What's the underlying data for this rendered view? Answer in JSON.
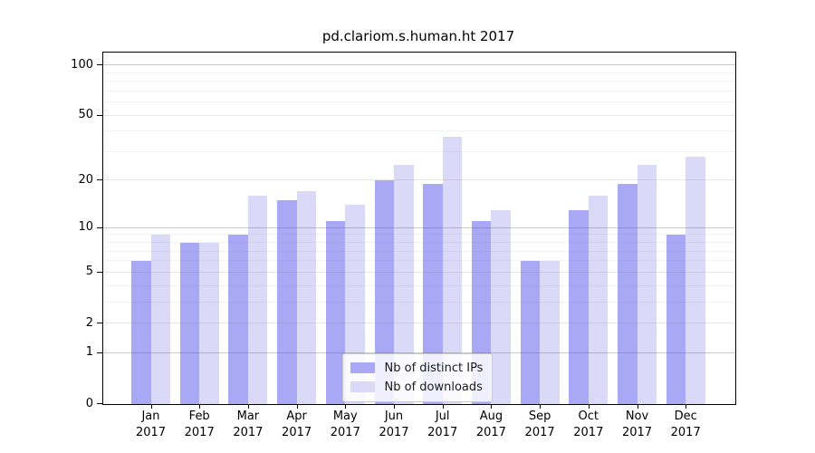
{
  "chart_data": {
    "type": "bar",
    "title": "pd.clariom.s.human.ht 2017",
    "x_categories_line1": [
      "Jan",
      "Feb",
      "Mar",
      "Apr",
      "May",
      "Jun",
      "Jul",
      "Aug",
      "Sep",
      "Oct",
      "Nov",
      "Dec"
    ],
    "x_categories_line2": "2017",
    "series": [
      {
        "name": "Nb of distinct IPs",
        "color": "#a8a8f5",
        "values": [
          6,
          8,
          9,
          15,
          11,
          20,
          19,
          11,
          6,
          13,
          19,
          9
        ]
      },
      {
        "name": "Nb of downloads",
        "color": "#dadaf8",
        "values": [
          9,
          8,
          16,
          17,
          14,
          25,
          37,
          13,
          6,
          16,
          25,
          28
        ]
      }
    ],
    "y_axis": {
      "scale": "log1p",
      "tick_labels": [
        "100",
        "50",
        "20",
        "10",
        "5",
        "2",
        "1",
        "0"
      ],
      "tick_values": [
        100,
        50,
        20,
        10,
        5,
        2,
        1,
        0
      ],
      "major_gridlines": [
        1,
        10,
        100
      ],
      "mid_gridlines": [
        2,
        5,
        20,
        50
      ],
      "minor_gridlines": [
        3,
        4,
        6,
        7,
        8,
        9,
        30,
        40,
        60,
        70,
        80,
        90
      ],
      "top_value": 120,
      "bottom_value": 0
    },
    "legend_position": "bottom-center",
    "grid": true
  }
}
